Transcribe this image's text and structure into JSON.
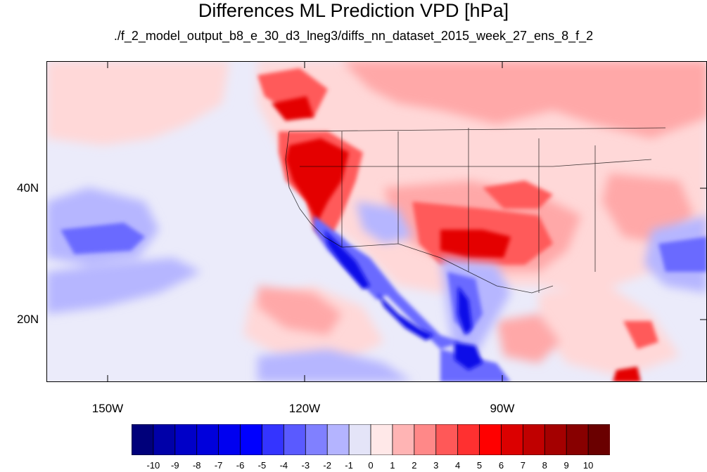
{
  "title": "Differences ML Prediction VPD [hPa]",
  "subtitle": "./f_2_model_output_b8_e_30_d3_lneg3/diffs_nn_dataset_2015_week_27_ens_8_f_2",
  "lat_labels": [
    "40N",
    "20N"
  ],
  "lon_labels": [
    "150W",
    "120W",
    "90W"
  ],
  "colorbar": {
    "labels": [
      "-10",
      "-9",
      "-8",
      "-7",
      "-6",
      "-5",
      "-4",
      "-3",
      "-2",
      "-1",
      "0",
      "1",
      "2",
      "3",
      "4",
      "5",
      "6",
      "7",
      "8",
      "9",
      "10"
    ],
    "colors": [
      "#00007a",
      "#0000a8",
      "#0000c8",
      "#0000dc",
      "#0000f0",
      "#0000ff",
      "#3434ff",
      "#5a5aff",
      "#8080ff",
      "#b4b4ff",
      "#e4e4f8",
      "#ffe8e8",
      "#ffb4b4",
      "#ff8888",
      "#ff5858",
      "#ff3030",
      "#ff0000",
      "#dc0000",
      "#c00000",
      "#a40000",
      "#880000",
      "#6a0000"
    ]
  }
}
